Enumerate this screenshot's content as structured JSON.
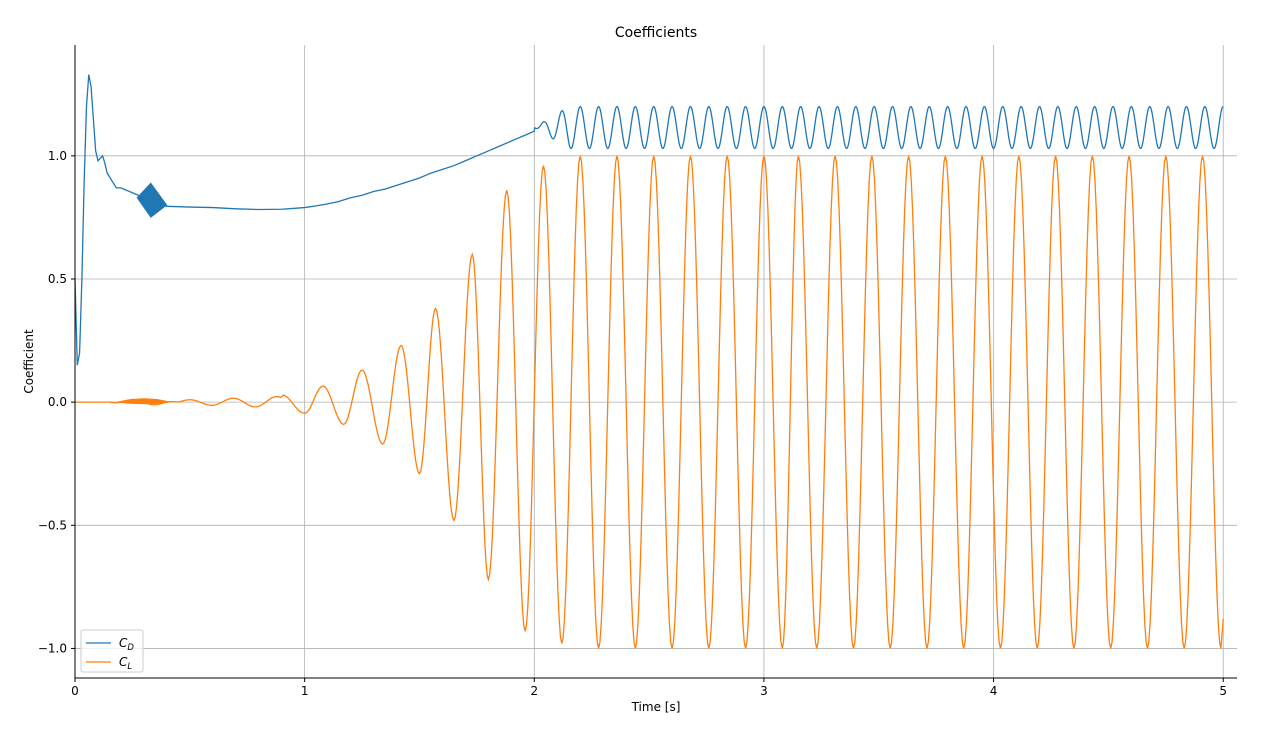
{
  "chart_data": {
    "type": "line",
    "title": "Coefficients",
    "xlabel": "Time [s]",
    "ylabel": "Coefficient",
    "xlim": [
      0,
      5.06
    ],
    "ylim": [
      -1.12,
      1.45
    ],
    "x_ticks": [
      0,
      1,
      2,
      3,
      4,
      5
    ],
    "x_tick_labels": [
      "0",
      "1",
      "2",
      "3",
      "4",
      "5"
    ],
    "y_ticks": [
      -1.0,
      -0.5,
      0.0,
      0.5,
      1.0
    ],
    "y_tick_labels": [
      "−1.0",
      "−0.5",
      "0.0",
      "0.5",
      "1.0"
    ],
    "grid": true,
    "legend_position": "lower-left",
    "series": [
      {
        "name": "C_D",
        "legend_main": "C",
        "legend_sub": "D",
        "color": "#1f77b4",
        "description": "drag coefficient; starts near 0.15, overshoots to ~1.33 at t~0.06 s, settles to ~0.78-0.79 by t~0.8 s, then rises with small ripples and becomes periodic from t~2 s oscillating between ~1.03 and ~1.20",
        "points": [
          [
            0.0,
            0.5
          ],
          [
            0.01,
            0.15
          ],
          [
            0.02,
            0.2
          ],
          [
            0.03,
            0.5
          ],
          [
            0.04,
            0.9
          ],
          [
            0.05,
            1.2
          ],
          [
            0.06,
            1.33
          ],
          [
            0.07,
            1.28
          ],
          [
            0.08,
            1.15
          ],
          [
            0.09,
            1.02
          ],
          [
            0.1,
            0.98
          ],
          [
            0.11,
            0.99
          ],
          [
            0.12,
            1.0
          ],
          [
            0.13,
            0.97
          ],
          [
            0.14,
            0.93
          ],
          [
            0.16,
            0.9
          ],
          [
            0.18,
            0.87
          ],
          [
            0.2,
            0.87
          ],
          [
            0.25,
            0.85
          ],
          [
            0.3,
            0.83
          ],
          [
            0.35,
            0.81
          ],
          [
            0.4,
            0.795
          ],
          [
            0.5,
            0.792
          ],
          [
            0.6,
            0.79
          ],
          [
            0.7,
            0.785
          ],
          [
            0.8,
            0.782
          ],
          [
            0.9,
            0.783
          ],
          [
            1.0,
            0.79
          ],
          [
            1.05,
            0.797
          ],
          [
            1.1,
            0.805
          ],
          [
            1.15,
            0.815
          ],
          [
            1.2,
            0.83
          ],
          [
            1.25,
            0.84
          ],
          [
            1.3,
            0.855
          ],
          [
            1.35,
            0.865
          ],
          [
            1.4,
            0.88
          ],
          [
            1.45,
            0.895
          ],
          [
            1.5,
            0.91
          ],
          [
            1.55,
            0.93
          ],
          [
            1.6,
            0.945
          ],
          [
            1.65,
            0.96
          ],
          [
            1.7,
            0.98
          ],
          [
            1.75,
            1.0
          ],
          [
            1.8,
            1.02
          ],
          [
            1.85,
            1.04
          ],
          [
            1.9,
            1.06
          ],
          [
            1.95,
            1.08
          ],
          [
            2.0,
            1.1
          ]
        ]
      },
      {
        "name": "C_L",
        "legend_main": "C",
        "legend_sub": "L",
        "color": "#ff7f0e",
        "description": "lift coefficient; near 0 with a small wavy disturbance around t~0.3 s, then an oscillation of growing amplitude from t~0.6 s that saturates at about ±1.0 from t~2.1 s",
        "envelope": [
          [
            0.0,
            0.0
          ],
          [
            0.4,
            0.01
          ],
          [
            0.8,
            0.02
          ],
          [
            1.0,
            0.05
          ],
          [
            1.1,
            0.07
          ],
          [
            1.25,
            0.13
          ],
          [
            1.4,
            0.2
          ],
          [
            1.55,
            0.33
          ],
          [
            1.7,
            0.55
          ],
          [
            1.8,
            0.72
          ],
          [
            1.9,
            0.88
          ],
          [
            2.0,
            0.95
          ],
          [
            2.1,
            1.0
          ],
          [
            5.0,
            1.0
          ]
        ],
        "period_s": 0.16,
        "peaks": [
          [
            0.9,
            0.03
          ],
          [
            1.08,
            0.065
          ],
          [
            1.25,
            0.13
          ],
          [
            1.42,
            0.23
          ],
          [
            1.57,
            0.38
          ],
          [
            1.73,
            0.6
          ],
          [
            1.88,
            0.86
          ],
          [
            2.04,
            0.96
          ],
          [
            2.2,
            1.0
          ],
          [
            2.36,
            1.0
          ],
          [
            2.52,
            1.0
          ],
          [
            2.68,
            1.0
          ],
          [
            2.84,
            1.0
          ],
          [
            3.0,
            1.0
          ],
          [
            3.15,
            1.0
          ],
          [
            3.31,
            1.0
          ],
          [
            3.47,
            1.0
          ],
          [
            3.63,
            1.0
          ],
          [
            3.79,
            1.0
          ],
          [
            3.95,
            1.0
          ],
          [
            4.11,
            1.0
          ],
          [
            4.27,
            1.0
          ],
          [
            4.43,
            1.0
          ],
          [
            4.59,
            1.0
          ],
          [
            4.75,
            1.0
          ],
          [
            4.91,
            1.0
          ]
        ],
        "troughs": [
          [
            1.0,
            -0.045
          ],
          [
            1.17,
            -0.09
          ],
          [
            1.34,
            -0.17
          ],
          [
            1.5,
            -0.29
          ],
          [
            1.65,
            -0.48
          ],
          [
            1.8,
            -0.72
          ],
          [
            1.96,
            -0.93
          ],
          [
            2.12,
            -0.98
          ],
          [
            2.28,
            -1.0
          ],
          [
            2.44,
            -1.0
          ],
          [
            2.6,
            -1.0
          ],
          [
            2.76,
            -1.0
          ],
          [
            2.92,
            -1.0
          ],
          [
            3.08,
            -1.0
          ],
          [
            3.23,
            -1.0
          ],
          [
            3.39,
            -1.0
          ],
          [
            3.55,
            -1.0
          ],
          [
            3.71,
            -1.0
          ],
          [
            3.87,
            -1.0
          ],
          [
            4.03,
            -1.0
          ],
          [
            4.19,
            -1.0
          ],
          [
            4.35,
            -1.0
          ],
          [
            4.51,
            -1.0
          ],
          [
            4.67,
            -1.0
          ],
          [
            4.83,
            -1.0
          ],
          [
            4.99,
            -1.0
          ]
        ]
      }
    ],
    "cd_periodic": {
      "start": 2.0,
      "end": 5.0,
      "low": 1.03,
      "high": 1.2,
      "period_s": 0.08
    }
  }
}
